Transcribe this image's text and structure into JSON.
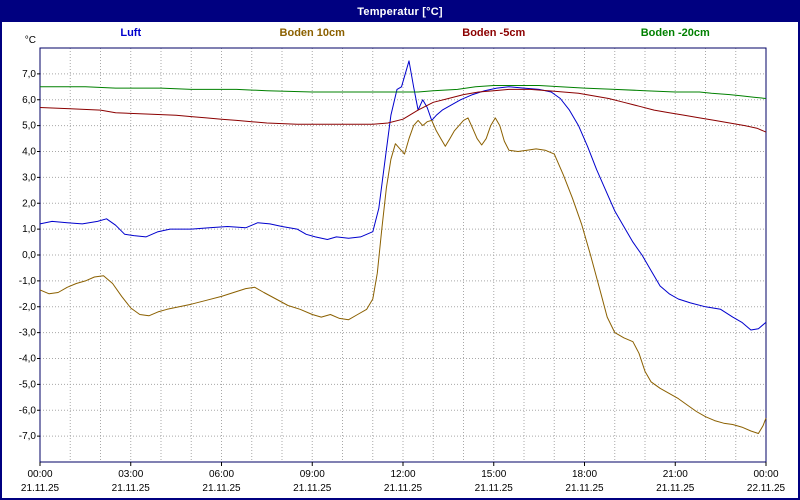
{
  "window": {
    "title": "Temperatur [°C]"
  },
  "colors": {
    "title_bar_bg": "#000080",
    "title_text": "#ffffff",
    "frame_border": "#000080",
    "plot_border": "#000066",
    "grid": "#a8a8a8",
    "background": "#ffffff",
    "axis_text": "#000000"
  },
  "legend": [
    {
      "label": "Luft",
      "color": "#0000cd"
    },
    {
      "label": "Boden 10cm",
      "color": "#8b6000"
    },
    {
      "label": "Boden -5cm",
      "color": "#8b0000"
    },
    {
      "label": "Boden -20cm",
      "color": "#008000"
    }
  ],
  "chart_data": {
    "type": "line",
    "title": "Temperatur [°C]",
    "xlabel": "",
    "ylabel": "°C",
    "ylim": [
      -8,
      8
    ],
    "xlim_hours": [
      0,
      24
    ],
    "grid": true,
    "legend_position": "top",
    "y_ticks": [
      {
        "value": 7,
        "label": "7,0"
      },
      {
        "value": 6,
        "label": "6,0"
      },
      {
        "value": 5,
        "label": "5,0"
      },
      {
        "value": 4,
        "label": "4,0"
      },
      {
        "value": 3,
        "label": "3,0"
      },
      {
        "value": 2,
        "label": "2,0"
      },
      {
        "value": 1,
        "label": "1,0"
      },
      {
        "value": 0,
        "label": "0,0"
      },
      {
        "value": -1,
        "label": "-1,0"
      },
      {
        "value": -2,
        "label": "-2,0"
      },
      {
        "value": -3,
        "label": "-3,0"
      },
      {
        "value": -4,
        "label": "-4,0"
      },
      {
        "value": -5,
        "label": "-5,0"
      },
      {
        "value": -6,
        "label": "-6,0"
      },
      {
        "value": -7,
        "label": "-7,0"
      }
    ],
    "x_ticks": [
      {
        "hour": 0,
        "time": "00:00",
        "date": "21.11.25"
      },
      {
        "hour": 3,
        "time": "03:00",
        "date": "21.11.25"
      },
      {
        "hour": 6,
        "time": "06:00",
        "date": "21.11.25"
      },
      {
        "hour": 9,
        "time": "09:00",
        "date": "21.11.25"
      },
      {
        "hour": 12,
        "time": "12:00",
        "date": "21.11.25"
      },
      {
        "hour": 15,
        "time": "15:00",
        "date": "21.11.25"
      },
      {
        "hour": 18,
        "time": "18:00",
        "date": "21.11.25"
      },
      {
        "hour": 21,
        "time": "21:00",
        "date": "21.11.25"
      },
      {
        "hour": 24,
        "time": "00:00",
        "date": "22.11.25"
      }
    ],
    "series": [
      {
        "name": "Luft",
        "color": "#0000cd",
        "points": [
          [
            0,
            1.2
          ],
          [
            0.4,
            1.3
          ],
          [
            0.9,
            1.25
          ],
          [
            1.4,
            1.2
          ],
          [
            1.9,
            1.3
          ],
          [
            2.2,
            1.4
          ],
          [
            2.5,
            1.15
          ],
          [
            2.8,
            0.8
          ],
          [
            3.1,
            0.75
          ],
          [
            3.5,
            0.7
          ],
          [
            3.9,
            0.9
          ],
          [
            4.3,
            1.0
          ],
          [
            5,
            1.0
          ],
          [
            5.6,
            1.05
          ],
          [
            6.2,
            1.1
          ],
          [
            6.8,
            1.05
          ],
          [
            7.2,
            1.25
          ],
          [
            7.6,
            1.2
          ],
          [
            8,
            1.1
          ],
          [
            8.5,
            1.0
          ],
          [
            8.8,
            0.8
          ],
          [
            9.1,
            0.7
          ],
          [
            9.5,
            0.6
          ],
          [
            9.8,
            0.7
          ],
          [
            10.2,
            0.65
          ],
          [
            10.6,
            0.7
          ],
          [
            11,
            0.9
          ],
          [
            11.2,
            1.8
          ],
          [
            11.4,
            3.6
          ],
          [
            11.6,
            5.4
          ],
          [
            11.8,
            6.4
          ],
          [
            11.95,
            6.5
          ],
          [
            12.1,
            7.1
          ],
          [
            12.2,
            7.5
          ],
          [
            12.35,
            6.5
          ],
          [
            12.5,
            5.6
          ],
          [
            12.65,
            6.0
          ],
          [
            12.8,
            5.7
          ],
          [
            12.95,
            5.2
          ],
          [
            13.1,
            5.4
          ],
          [
            13.3,
            5.6
          ],
          [
            13.6,
            5.8
          ],
          [
            13.9,
            6.0
          ],
          [
            14.3,
            6.2
          ],
          [
            14.7,
            6.35
          ],
          [
            15.1,
            6.45
          ],
          [
            15.5,
            6.5
          ],
          [
            16,
            6.45
          ],
          [
            16.5,
            6.4
          ],
          [
            16.9,
            6.3
          ],
          [
            17.2,
            6.05
          ],
          [
            17.5,
            5.6
          ],
          [
            17.8,
            5.0
          ],
          [
            18.1,
            4.2
          ],
          [
            18.4,
            3.3
          ],
          [
            18.7,
            2.5
          ],
          [
            19,
            1.7
          ],
          [
            19.3,
            1.1
          ],
          [
            19.6,
            0.5
          ],
          [
            19.9,
            0.0
          ],
          [
            20.2,
            -0.6
          ],
          [
            20.5,
            -1.2
          ],
          [
            20.8,
            -1.5
          ],
          [
            21.1,
            -1.7
          ],
          [
            21.5,
            -1.85
          ],
          [
            22,
            -2.0
          ],
          [
            22.5,
            -2.1
          ],
          [
            22.9,
            -2.4
          ],
          [
            23.2,
            -2.6
          ],
          [
            23.5,
            -2.9
          ],
          [
            23.75,
            -2.85
          ],
          [
            24,
            -2.6
          ]
        ]
      },
      {
        "name": "Boden 10cm",
        "color": "#8b6000",
        "points": [
          [
            0,
            -1.35
          ],
          [
            0.3,
            -1.5
          ],
          [
            0.6,
            -1.45
          ],
          [
            0.9,
            -1.25
          ],
          [
            1.2,
            -1.1
          ],
          [
            1.5,
            -1.0
          ],
          [
            1.8,
            -0.85
          ],
          [
            2.1,
            -0.8
          ],
          [
            2.4,
            -1.1
          ],
          [
            2.7,
            -1.6
          ],
          [
            3,
            -2.05
          ],
          [
            3.3,
            -2.3
          ],
          [
            3.6,
            -2.35
          ],
          [
            3.9,
            -2.2
          ],
          [
            4.2,
            -2.1
          ],
          [
            4.6,
            -2.0
          ],
          [
            5,
            -1.9
          ],
          [
            5.5,
            -1.75
          ],
          [
            6,
            -1.6
          ],
          [
            6.4,
            -1.45
          ],
          [
            6.8,
            -1.3
          ],
          [
            7.1,
            -1.25
          ],
          [
            7.4,
            -1.45
          ],
          [
            7.8,
            -1.7
          ],
          [
            8.2,
            -1.95
          ],
          [
            8.6,
            -2.1
          ],
          [
            9,
            -2.3
          ],
          [
            9.3,
            -2.4
          ],
          [
            9.6,
            -2.3
          ],
          [
            9.9,
            -2.45
          ],
          [
            10.2,
            -2.5
          ],
          [
            10.5,
            -2.3
          ],
          [
            10.8,
            -2.1
          ],
          [
            11,
            -1.7
          ],
          [
            11.15,
            -0.7
          ],
          [
            11.3,
            1.0
          ],
          [
            11.45,
            2.6
          ],
          [
            11.6,
            3.7
          ],
          [
            11.75,
            4.3
          ],
          [
            11.9,
            4.1
          ],
          [
            12.05,
            3.9
          ],
          [
            12.2,
            4.5
          ],
          [
            12.35,
            5.0
          ],
          [
            12.5,
            5.2
          ],
          [
            12.65,
            5.0
          ],
          [
            12.8,
            5.15
          ],
          [
            12.95,
            5.2
          ],
          [
            13.1,
            4.8
          ],
          [
            13.25,
            4.5
          ],
          [
            13.4,
            4.2
          ],
          [
            13.55,
            4.5
          ],
          [
            13.7,
            4.8
          ],
          [
            13.85,
            5.0
          ],
          [
            14,
            5.2
          ],
          [
            14.15,
            5.3
          ],
          [
            14.3,
            4.9
          ],
          [
            14.45,
            4.5
          ],
          [
            14.6,
            4.25
          ],
          [
            14.75,
            4.5
          ],
          [
            14.9,
            5.0
          ],
          [
            15.05,
            5.3
          ],
          [
            15.2,
            5.0
          ],
          [
            15.35,
            4.4
          ],
          [
            15.5,
            4.05
          ],
          [
            15.8,
            4.0
          ],
          [
            16.1,
            4.05
          ],
          [
            16.4,
            4.1
          ],
          [
            16.7,
            4.05
          ],
          [
            17,
            3.9
          ],
          [
            17.3,
            3.1
          ],
          [
            17.6,
            2.2
          ],
          [
            17.9,
            1.2
          ],
          [
            18.2,
            0.0
          ],
          [
            18.5,
            -1.3
          ],
          [
            18.75,
            -2.4
          ],
          [
            19,
            -3.0
          ],
          [
            19.3,
            -3.2
          ],
          [
            19.6,
            -3.35
          ],
          [
            19.8,
            -3.8
          ],
          [
            20,
            -4.5
          ],
          [
            20.2,
            -4.9
          ],
          [
            20.5,
            -5.15
          ],
          [
            20.8,
            -5.35
          ],
          [
            21.1,
            -5.55
          ],
          [
            21.4,
            -5.8
          ],
          [
            21.7,
            -6.05
          ],
          [
            22,
            -6.25
          ],
          [
            22.3,
            -6.4
          ],
          [
            22.6,
            -6.5
          ],
          [
            22.9,
            -6.55
          ],
          [
            23.2,
            -6.65
          ],
          [
            23.5,
            -6.8
          ],
          [
            23.75,
            -6.9
          ],
          [
            23.9,
            -6.6
          ],
          [
            24,
            -6.3
          ]
        ]
      },
      {
        "name": "Boden -5cm",
        "color": "#8b0000",
        "points": [
          [
            0,
            5.7
          ],
          [
            1,
            5.65
          ],
          [
            2,
            5.6
          ],
          [
            2.5,
            5.5
          ],
          [
            3.5,
            5.45
          ],
          [
            4.5,
            5.4
          ],
          [
            5,
            5.35
          ],
          [
            5.5,
            5.3
          ],
          [
            6,
            5.25
          ],
          [
            6.5,
            5.2
          ],
          [
            7,
            5.15
          ],
          [
            7.5,
            5.1
          ],
          [
            8.5,
            5.05
          ],
          [
            9.5,
            5.05
          ],
          [
            10.5,
            5.05
          ],
          [
            11,
            5.05
          ],
          [
            11.5,
            5.1
          ],
          [
            12,
            5.25
          ],
          [
            12.5,
            5.6
          ],
          [
            13,
            5.9
          ],
          [
            13.5,
            6.05
          ],
          [
            14,
            6.2
          ],
          [
            14.5,
            6.3
          ],
          [
            15,
            6.35
          ],
          [
            15.5,
            6.4
          ],
          [
            16.2,
            6.4
          ],
          [
            16.8,
            6.35
          ],
          [
            17.3,
            6.3
          ],
          [
            17.8,
            6.25
          ],
          [
            18.3,
            6.15
          ],
          [
            18.8,
            6.05
          ],
          [
            19.3,
            5.9
          ],
          [
            19.8,
            5.75
          ],
          [
            20.3,
            5.6
          ],
          [
            20.8,
            5.5
          ],
          [
            21.3,
            5.4
          ],
          [
            21.8,
            5.3
          ],
          [
            22.3,
            5.2
          ],
          [
            22.8,
            5.1
          ],
          [
            23.3,
            5.0
          ],
          [
            23.7,
            4.9
          ],
          [
            24,
            4.75
          ]
        ]
      },
      {
        "name": "Boden -20cm",
        "color": "#008000",
        "points": [
          [
            0,
            6.5
          ],
          [
            1.5,
            6.5
          ],
          [
            2.5,
            6.45
          ],
          [
            4,
            6.45
          ],
          [
            5,
            6.4
          ],
          [
            6.5,
            6.4
          ],
          [
            7.5,
            6.35
          ],
          [
            9,
            6.3
          ],
          [
            11,
            6.3
          ],
          [
            12.5,
            6.3
          ],
          [
            13,
            6.35
          ],
          [
            13.8,
            6.4
          ],
          [
            14.4,
            6.5
          ],
          [
            15,
            6.55
          ],
          [
            16.5,
            6.55
          ],
          [
            17.2,
            6.5
          ],
          [
            18,
            6.45
          ],
          [
            19,
            6.4
          ],
          [
            20,
            6.35
          ],
          [
            21,
            6.3
          ],
          [
            21.8,
            6.3
          ],
          [
            22.2,
            6.25
          ],
          [
            22.8,
            6.2
          ],
          [
            23.2,
            6.15
          ],
          [
            23.6,
            6.1
          ],
          [
            24,
            6.05
          ]
        ]
      }
    ]
  }
}
